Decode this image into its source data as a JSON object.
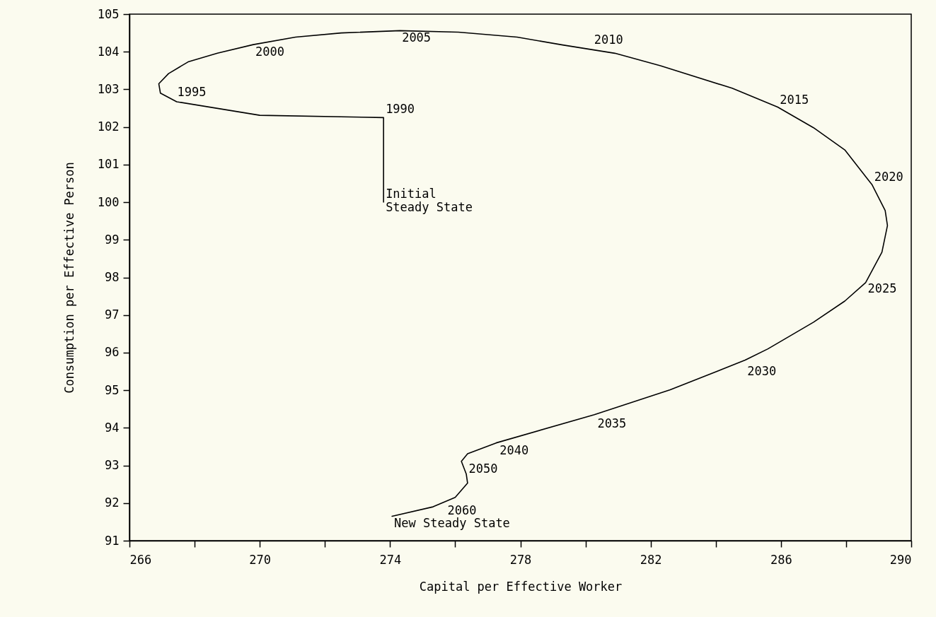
{
  "chart_data": {
    "type": "line",
    "xlabel": "Capital per Effective Worker",
    "ylabel": "Consumption per Effective Person",
    "xlim": [
      266,
      290
    ],
    "ylim": [
      91,
      105
    ],
    "xticks": [
      266,
      {
        "value": 268,
        "label": null
      },
      270,
      {
        "value": 272,
        "label": null
      },
      274,
      {
        "value": 276,
        "label": null
      },
      278,
      {
        "value": 280,
        "label": null
      },
      282,
      {
        "value": 284,
        "label": null
      },
      286,
      {
        "value": 288,
        "label": null
      },
      290
    ],
    "yticks": [
      91,
      92,
      93,
      94,
      95,
      96,
      97,
      98,
      99,
      100,
      101,
      102,
      103,
      104,
      105
    ],
    "x": [
      273.8,
      273.8,
      270.0,
      267.45,
      266.95,
      266.9,
      267.2,
      267.8,
      268.7,
      269.8,
      271.1,
      272.5,
      274.3,
      276.1,
      277.9,
      279.3,
      280.9,
      282.3,
      284.5,
      285.9,
      287.0,
      287.96,
      288.8,
      289.2,
      289.27,
      289.1,
      288.6,
      287.96,
      287.0,
      285.6,
      284.9,
      282.6,
      280.27,
      277.26,
      276.38,
      276.19,
      276.34,
      276.38,
      276.0,
      275.32,
      274.06
    ],
    "series": [
      {
        "color": "#000000",
        "values": [
          100.0,
          102.25,
          102.31,
          102.67,
          102.9,
          103.15,
          103.42,
          103.73,
          103.96,
          104.19,
          104.39,
          104.5,
          104.56,
          104.52,
          104.39,
          104.18,
          103.96,
          103.63,
          103.03,
          102.53,
          101.98,
          101.39,
          100.46,
          99.78,
          99.38,
          98.67,
          97.86,
          97.37,
          96.81,
          96.1,
          95.8,
          95.01,
          94.35,
          93.6,
          93.31,
          93.11,
          92.77,
          92.53,
          92.15,
          91.9,
          91.65
        ]
      }
    ],
    "annotations": [
      {
        "text": "1990",
        "x": 273.8,
        "y": 102.25
      },
      {
        "text": "1995",
        "x": 267.4,
        "y": 102.7
      },
      {
        "text": "2000",
        "x": 269.8,
        "y": 104.2
      },
      {
        "text": "2005",
        "x": 274.3,
        "y": 104.56
      },
      {
        "text": "2010",
        "x": 280.2,
        "y": 104.1
      },
      {
        "text": "2015",
        "x": 285.9,
        "y": 102.5
      },
      {
        "text": "2020",
        "x": 288.8,
        "y": 100.46
      },
      {
        "text": "2025",
        "x": 288.6,
        "y": 97.9
      },
      {
        "text": "2030",
        "x": 284.9,
        "y": 95.7
      },
      {
        "text": "2035",
        "x": 280.3,
        "y": 94.3
      },
      {
        "text": "2040",
        "x": 277.3,
        "y": 93.6
      },
      {
        "text": "2050",
        "x": 276.35,
        "y": 92.7
      },
      {
        "text": "2060",
        "x": 275.7,
        "y": 92.0
      },
      {
        "text": "Initial\nSteady State",
        "x": 273.8,
        "y": 100.0
      },
      {
        "text": "New Steady State",
        "x": 274.06,
        "y": 91.65
      }
    ]
  }
}
